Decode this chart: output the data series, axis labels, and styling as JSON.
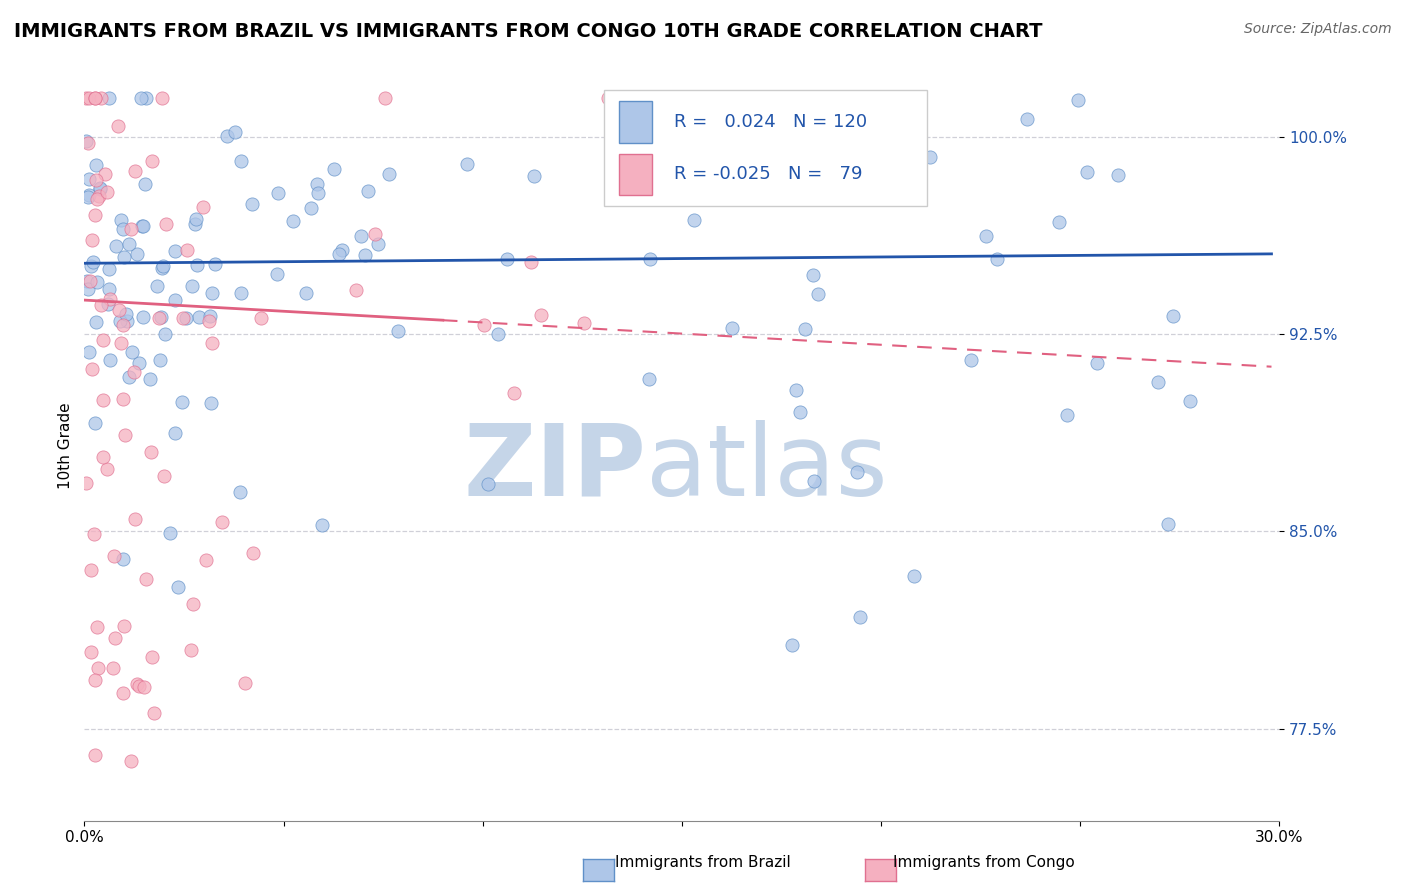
{
  "title": "IMMIGRANTS FROM BRAZIL VS IMMIGRANTS FROM CONGO 10TH GRADE CORRELATION CHART",
  "source": "Source: ZipAtlas.com",
  "ylabel": "10th Grade",
  "xlim": [
    0.0,
    30.0
  ],
  "ylim": [
    74.0,
    102.5
  ],
  "yticks": [
    77.5,
    85.0,
    92.5,
    100.0
  ],
  "ytick_labels": [
    "77.5%",
    "85.0%",
    "92.5%",
    "100.0%"
  ],
  "brazil_R": 0.024,
  "brazil_N": 120,
  "congo_R": -0.025,
  "congo_N": 79,
  "brazil_color": "#aec6e8",
  "congo_color": "#f5b0c0",
  "brazil_edge_color": "#6090c8",
  "congo_edge_color": "#e07090",
  "brazil_trend_color": "#2255aa",
  "congo_trend_color": "#e06080",
  "watermark_ZIP_color": "#c5d5e8",
  "watermark_atlas_color": "#c5d5e8",
  "legend_text_color": "#2255aa",
  "title_fontsize": 14,
  "axis_label_fontsize": 11,
  "tick_fontsize": 11,
  "source_fontsize": 10
}
